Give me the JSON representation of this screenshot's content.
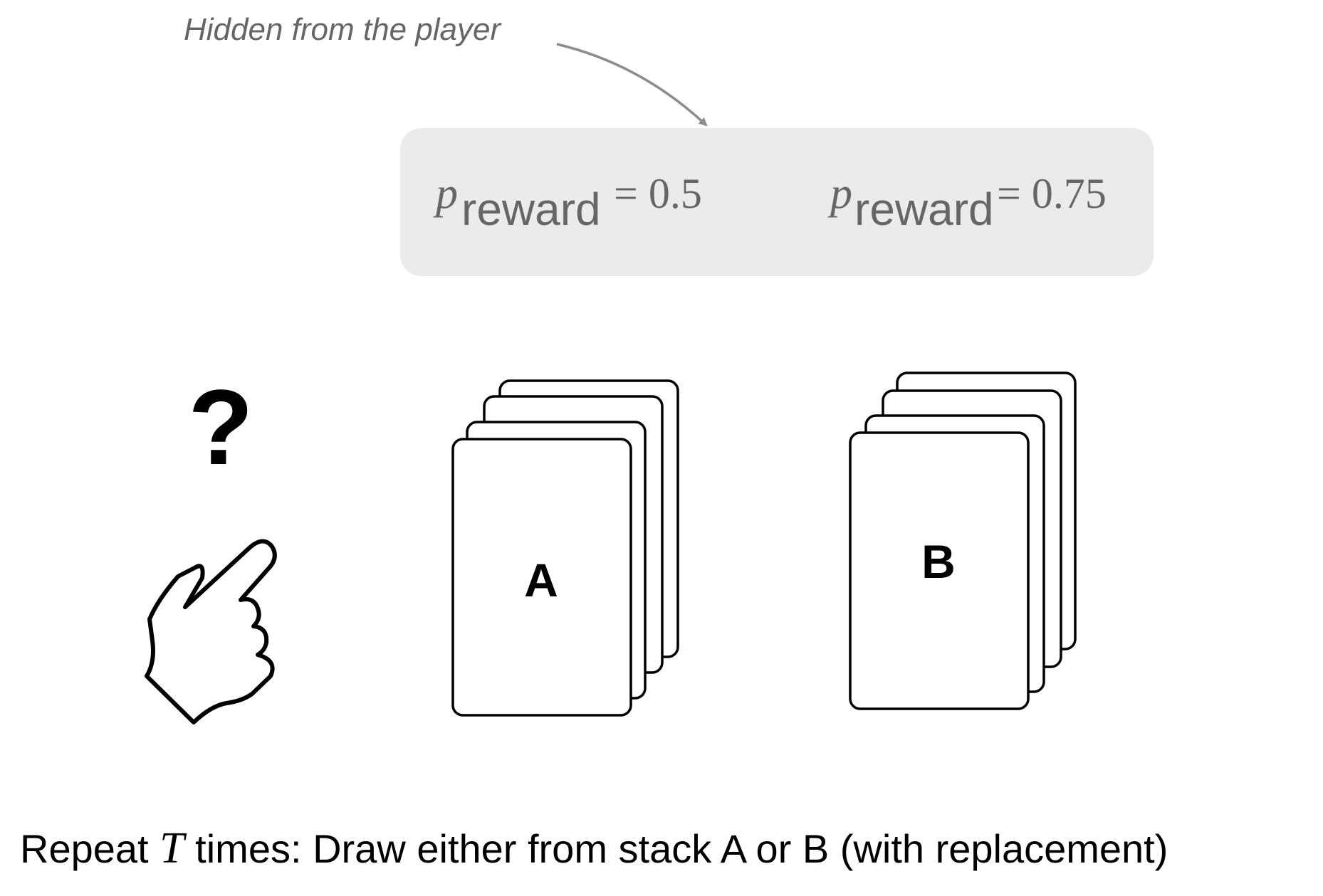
{
  "annotation": {
    "text": "Hidden from the player"
  },
  "hidden_panel": {
    "stack_a": {
      "symbol": "p",
      "subscript": "reward",
      "relation": "= 0.5"
    },
    "stack_b": {
      "symbol": "p",
      "subscript": "reward",
      "relation": "= 0.75"
    }
  },
  "player": {
    "question_mark": "?",
    "hand_icon": "pointing-hand-icon"
  },
  "stacks": {
    "a": {
      "label": "A"
    },
    "b": {
      "label": "B"
    }
  },
  "caption": {
    "prefix": "Repeat ",
    "variable": "T",
    "suffix": " times: Draw either from stack A or B (with replacement)"
  },
  "colors": {
    "panel_fill": "#ebebeb",
    "muted_text": "#666666",
    "arrow": "#8c8c8c",
    "ink": "#000000"
  }
}
